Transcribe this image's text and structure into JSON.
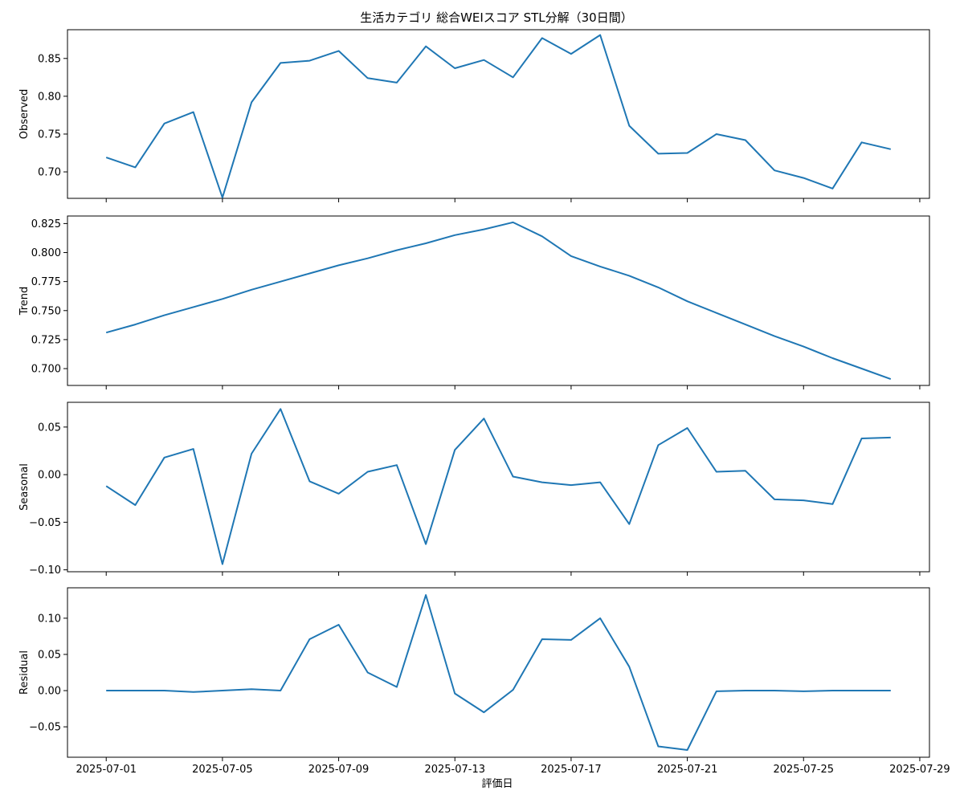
{
  "chart_data": {
    "type": "line",
    "title": "生活カテゴリ 総合WEIスコア STL分解（30日間）",
    "xlabel": "評価日",
    "x_dates": [
      "2025-07-01",
      "2025-07-02",
      "2025-07-03",
      "2025-07-04",
      "2025-07-05",
      "2025-07-06",
      "2025-07-07",
      "2025-07-08",
      "2025-07-09",
      "2025-07-10",
      "2025-07-11",
      "2025-07-12",
      "2025-07-13",
      "2025-07-14",
      "2025-07-15",
      "2025-07-16",
      "2025-07-17",
      "2025-07-18",
      "2025-07-19",
      "2025-07-20",
      "2025-07-21",
      "2025-07-22",
      "2025-07-23",
      "2025-07-24",
      "2025-07-25",
      "2025-07-26",
      "2025-07-27",
      "2025-07-28"
    ],
    "x_ticks": [
      "2025-07-01",
      "2025-07-05",
      "2025-07-09",
      "2025-07-13",
      "2025-07-17",
      "2025-07-21",
      "2025-07-25",
      "2025-07-29"
    ],
    "x_range": [
      "2025-06-29T16:00",
      "2025-07-29T08:00"
    ],
    "color": "#1f77b4",
    "panels": [
      {
        "ylabel": "Observed",
        "ylim": [
          0.665,
          0.888
        ],
        "yticks": [
          0.7,
          0.75,
          0.8,
          0.85
        ],
        "ytick_labels": [
          "0.70",
          "0.75",
          "0.80",
          "0.85"
        ],
        "values": [
          0.719,
          0.706,
          0.764,
          0.779,
          0.666,
          0.792,
          0.844,
          0.847,
          0.86,
          0.824,
          0.818,
          0.866,
          0.837,
          0.848,
          0.825,
          0.877,
          0.856,
          0.881,
          0.761,
          0.724,
          0.725,
          0.75,
          0.742,
          0.702,
          0.692,
          0.678,
          0.739,
          0.73
        ]
      },
      {
        "ylabel": "Trend",
        "ylim": [
          0.6855,
          0.8315
        ],
        "yticks": [
          0.7,
          0.725,
          0.75,
          0.775,
          0.8,
          0.825
        ],
        "ytick_labels": [
          "0.700",
          "0.725",
          "0.750",
          "0.775",
          "0.800",
          "0.825"
        ],
        "values": [
          0.731,
          0.738,
          0.746,
          0.753,
          0.76,
          0.768,
          0.775,
          0.782,
          0.789,
          0.795,
          0.802,
          0.808,
          0.815,
          0.82,
          0.826,
          0.814,
          0.797,
          0.788,
          0.78,
          0.77,
          0.758,
          0.748,
          0.738,
          0.728,
          0.719,
          0.709,
          0.7,
          0.691
        ]
      },
      {
        "ylabel": "Seasonal",
        "ylim": [
          -0.102,
          0.076
        ],
        "yticks": [
          -0.1,
          -0.05,
          0.0,
          0.05
        ],
        "ytick_labels": [
          "−0.10",
          "−0.05",
          "0.00",
          "0.05"
        ],
        "values": [
          -0.012,
          -0.032,
          0.018,
          0.027,
          -0.094,
          0.022,
          0.069,
          -0.007,
          -0.02,
          0.003,
          0.01,
          -0.073,
          0.026,
          0.059,
          -0.002,
          -0.008,
          -0.011,
          -0.008,
          -0.052,
          0.031,
          0.049,
          0.003,
          0.004,
          -0.026,
          -0.027,
          -0.031,
          0.038,
          0.039
        ]
      },
      {
        "ylabel": "Residual",
        "ylim": [
          -0.092,
          0.142
        ],
        "yticks": [
          -0.05,
          0.0,
          0.05,
          0.1
        ],
        "ytick_labels": [
          "−0.05",
          "0.00",
          "0.05",
          "0.10"
        ],
        "values": [
          0.0,
          0.0,
          0.0,
          -0.002,
          0.0,
          0.002,
          0.0,
          0.071,
          0.091,
          0.025,
          0.005,
          0.132,
          -0.004,
          -0.03,
          0.001,
          0.071,
          0.07,
          0.1,
          0.033,
          -0.077,
          -0.082,
          -0.001,
          0.0,
          0.0,
          -0.001,
          0.0,
          0.0,
          0.0
        ]
      }
    ]
  }
}
